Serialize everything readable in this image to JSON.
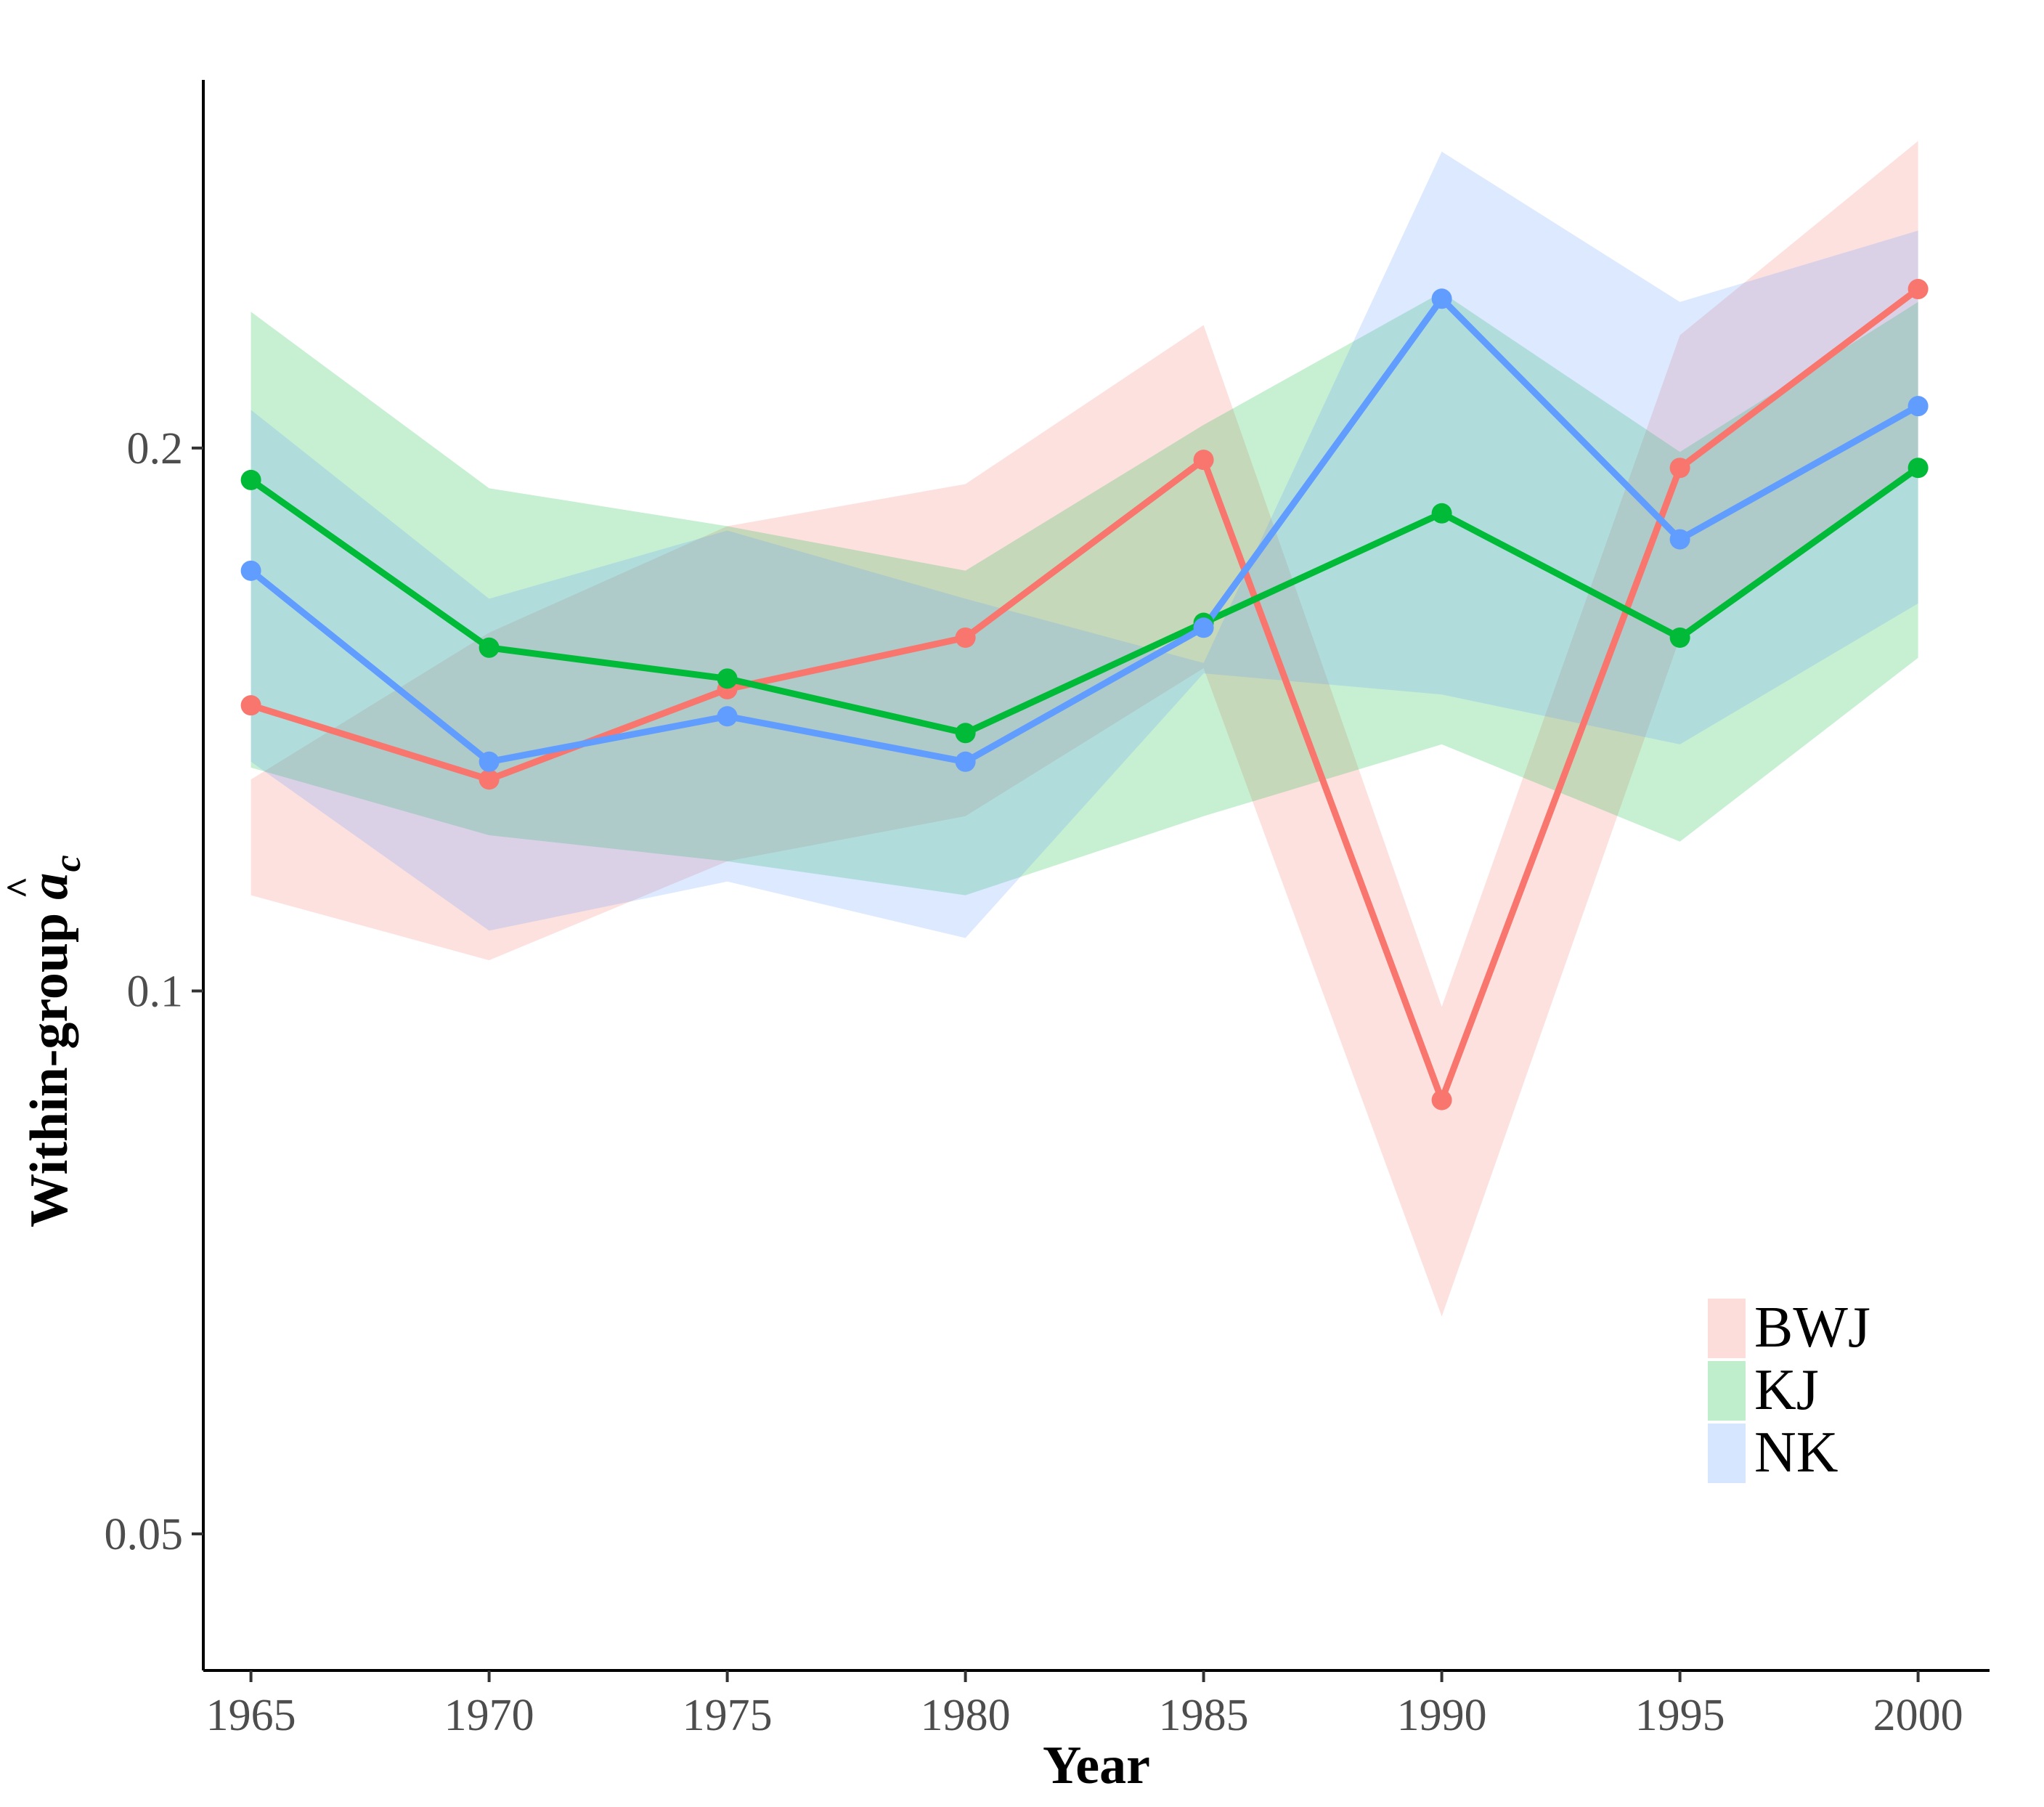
{
  "chart_data": {
    "type": "line",
    "title": "",
    "xlabel": "Year",
    "ylabel": "Within-group",
    "ylabel_symbol": "a",
    "ylabel_hat": "^",
    "ylabel_subscript": "c",
    "y_scale": "log",
    "ylim": [
      0.042,
      0.32
    ],
    "xlim": [
      1964,
      2001.5
    ],
    "x": [
      1965,
      1970,
      1975,
      1980,
      1985,
      1990,
      1995,
      2000
    ],
    "x_tick_labels": [
      "1965",
      "1970",
      "1975",
      "1980",
      "1985",
      "1990",
      "1995",
      "2000"
    ],
    "y_ticks": [
      0.05,
      0.1,
      0.2
    ],
    "y_tick_labels": [
      "0.05",
      "0.1",
      "0.2"
    ],
    "legend_position": "bottom-right",
    "series": [
      {
        "name": "BWJ",
        "color": "#F8766D",
        "values": [
          0.144,
          0.131,
          0.147,
          0.157,
          0.197,
          0.087,
          0.195,
          0.245
        ],
        "lower": [
          0.113,
          0.104,
          0.118,
          0.125,
          0.151,
          0.066,
          0.157,
          0.194
        ],
        "upper": [
          0.131,
          0.158,
          0.181,
          0.191,
          0.234,
          0.098,
          0.231,
          0.296
        ]
      },
      {
        "name": "KJ",
        "color": "#00BA38",
        "values": [
          0.192,
          0.155,
          0.149,
          0.139,
          0.16,
          0.184,
          0.157,
          0.195
        ],
        "lower": [
          0.133,
          0.122,
          0.118,
          0.113,
          0.125,
          0.137,
          0.121,
          0.153
        ],
        "upper": [
          0.238,
          0.19,
          0.181,
          0.171,
          0.206,
          0.244,
          0.199,
          0.241
        ]
      },
      {
        "name": "NK",
        "color": "#619CFF",
        "values": [
          0.171,
          0.134,
          0.142,
          0.134,
          0.159,
          0.242,
          0.178,
          0.211
        ],
        "lower": [
          0.134,
          0.108,
          0.115,
          0.107,
          0.15,
          0.146,
          0.137,
          0.164
        ],
        "upper": [
          0.21,
          0.165,
          0.18,
          0.165,
          0.152,
          0.292,
          0.241,
          0.264
        ]
      }
    ]
  }
}
